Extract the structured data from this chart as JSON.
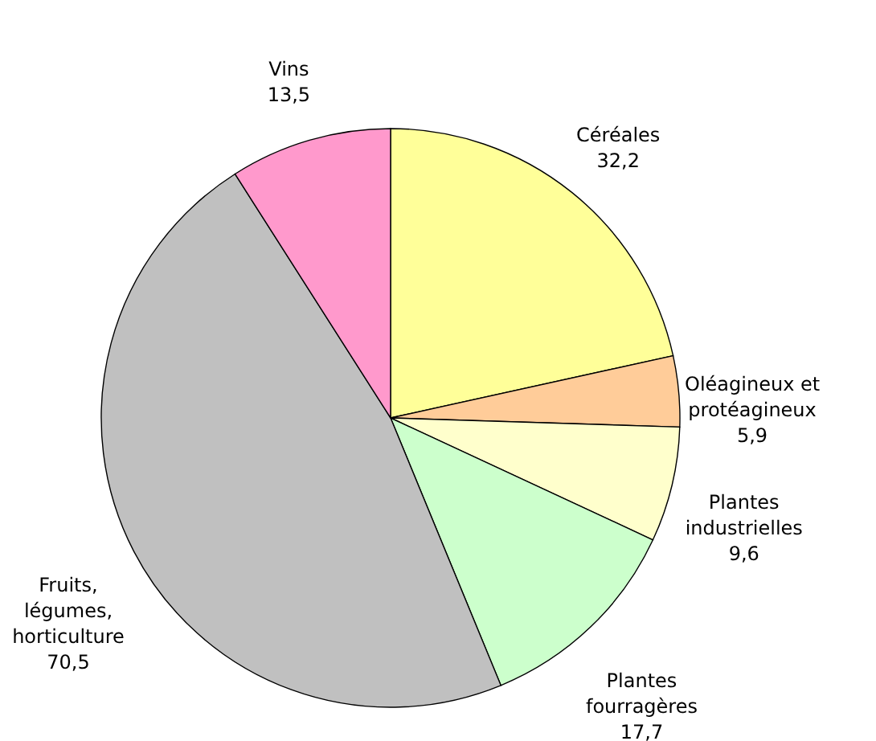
{
  "chart_data": {
    "type": "pie",
    "categories": [
      "Céréales",
      "Oléagineux et protéagineux",
      "Plantes industrielles",
      "Plantes fourragères",
      "Fruits, légumes, horticulture",
      "Vins"
    ],
    "values": [
      32.2,
      5.9,
      9.6,
      17.7,
      70.5,
      13.5
    ],
    "value_labels": [
      "32,2",
      "5,9",
      "9,6",
      "17,7",
      "70,5",
      "13,5"
    ],
    "colors": [
      "#ffff99",
      "#ffcc99",
      "#ffffcc",
      "#ccffcc",
      "#c0c0c0",
      "#ff99cc"
    ]
  }
}
